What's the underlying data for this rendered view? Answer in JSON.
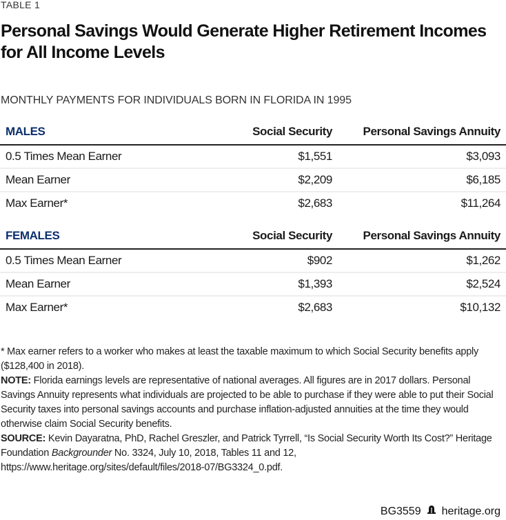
{
  "label": "TABLE 1",
  "title": "Personal Savings Would Generate Higher Retirement Incomes for All Income Levels",
  "subtitle": "MONTHLY PAYMENTS FOR INDIVIDUALS BORN IN FLORIDA IN 1995",
  "groups": [
    {
      "name": "MALES",
      "col1": "Social Security",
      "col2": "Personal Savings Annuity",
      "rows": [
        [
          "0.5 Times Mean Earner",
          "$1,551",
          "$3,093"
        ],
        [
          "Mean Earner",
          "$2,209",
          "$6,185"
        ],
        [
          "Max Earner*",
          "$2,683",
          "$11,264"
        ]
      ]
    },
    {
      "name": "FEMALES",
      "col1": "Social Security",
      "col2": "Personal Savings Annuity",
      "rows": [
        [
          "0.5 Times Mean Earner",
          "$902",
          "$1,262"
        ],
        [
          "Mean Earner",
          "$1,393",
          "$2,524"
        ],
        [
          "Max Earner*",
          "$2,683",
          "$10,132"
        ]
      ]
    }
  ],
  "notes": {
    "footnote": "* Max earner refers to a worker who makes at least the taxable maximum to which Social Security benefits apply ($128,400 in 2018).",
    "note_label": "NOTE:",
    "note": " Florida earnings levels are representative of national averages. All figures are in 2017 dollars. Personal Savings Annuity represents what individuals are projected to be able to purchase if they were able to put their Social Security taxes into personal savings accounts and purchase inflation-adjusted annuities at the time they would otherwise claim Social Security benefits.",
    "source_label": "SOURCE:",
    "source_a": " Kevin Dayaratna, PhD, Rachel Greszler, and Patrick Tyrrell, “Is Social Security Worth Its Cost?” Heritage Foundation ",
    "source_italic": "Backgrounder",
    "source_b": " No. 3324, July 10, 2018, Tables 11 and 12, https://www.heritage.org/sites/default/files/2018-07/BG3324_0.pdf."
  },
  "footer": {
    "code": "BG3559",
    "site": "heritage.org",
    "icon": "liberty-bell-icon"
  }
}
